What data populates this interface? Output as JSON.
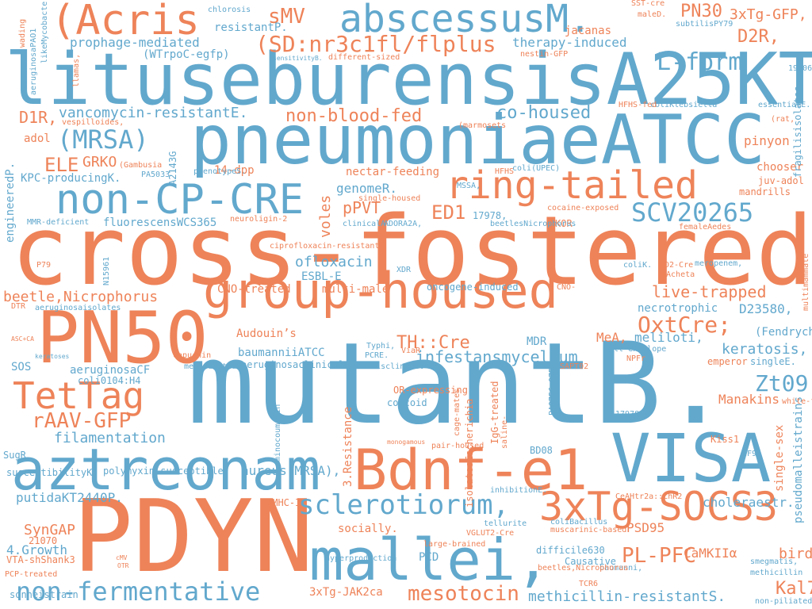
{
  "colors": {
    "orange": "#ee8359",
    "blue": "#62a8cd",
    "background": "#ffffff"
  },
  "words": [
    "cross-fostered",
    "mutantB.",
    "lituseburensisA25KT,",
    "pneumoniaeATCC",
    "PDYN",
    "PN50",
    "group-housed",
    "VISA",
    "aztreonam",
    "Bdnf-e1",
    "mallei,",
    "3xTg-SOCS3",
    "(Acris",
    "abscessusM.",
    "non-CP-CRE",
    "ring-tailed",
    "TetTag",
    "sclerotiorum,",
    "(SD:nr3c1fl/flplus",
    "non-fermentative",
    "SCV20265",
    "L-form",
    "sMV",
    "PN30",
    "3xTg-GFP,",
    "D2R,",
    "OxtCre;",
    "Zt09",
    "mesotocin",
    "PL-PFC",
    "(MRSA)",
    "rAAV-GFP",
    "live-trapped",
    "TH::Cre",
    "infestansmycelium",
    "beetle,Nicrophorus",
    "non-blood-fed",
    "co-housed",
    "ED1",
    "Kal7",
    "vancomycin-resistantE.",
    "ELE",
    "GRKO",
    "D1R,",
    "methicillin-resistantS.",
    "pinyon",
    "filamentation",
    "aureus(MRSA),",
    "putidaKT2440P.",
    "genomeR.",
    "pPVT",
    "voles",
    "ofloxacin",
    "SynGAP",
    "CaMKIIα",
    "birds’",
    "MeA,",
    "meliloti,",
    "keratosis,",
    "Manakins",
    "D23580,",
    "choleraestr.",
    "PSD95",
    "CNO-treated",
    "multi-male",
    "ESBL-E",
    "prophage-mediated",
    "(WTrpoC-egfp)",
    "resistantP.",
    "therapy-induced",
    "jacanas",
    "KPC-producingK.",
    "fluorescensWCS365",
    "nectar-feeding",
    "14-dpp",
    "adol",
    "necrotrophic",
    "(Fendrych",
    "3xTg-JAK2ca",
    "PCD",
    "socially.",
    "4.Growth",
    "MDR",
    "Audouin’s",
    "baumanniiATCC",
    "aeruginosaCF",
    "coli0104:H4",
    "SOS",
    "susceptibilityK,",
    "polymyxin-susceptible",
    "sonneistrain",
    "difficile630",
    "Causative",
    "BD08",
    "chooser",
    "juv-adol",
    "mandrills",
    "KOR",
    "17978,",
    "single-sex",
    "pseudomalleistrains",
    "3.Resistance",
    "isolatesEscherichia",
    "IgG-treated",
    "OR-expressing",
    "coccoid",
    "engineeredP.",
    "fragilisisolates",
    "A2143G",
    "MMR-deficient",
    "neuroligin-2",
    "ciprofloxacin-resistant",
    "oncogene-induced",
    "single-housed",
    "cocaine-exposed",
    "ADORA2A,",
    "beetlesNicrophorus",
    "clinicalA.",
    "coliKlebsiella",
    "essentialE.",
    "HFHS-fed",
    "chlorosis",
    "SST-cre",
    "maleD.",
    "subtilisPY79",
    "nestin-GFP",
    "different-sized",
    "aeruginosaPAO1",
    "likeMycobacterium",
    "llamas,",
    "wading",
    "sensitivityB.",
    "(marmosets",
    "vespilloides,",
    "(Gambusia",
    "PA5033",
    "phenotypeS.",
    "coli(UPEC)",
    "MSSA,",
    "HFHS",
    "femaleAedes",
    "meropenem,",
    "D2-Cre",
    "(Acheta",
    "(rat,",
    "19606",
    "multimammate",
    "XDR",
    "N15961",
    "P79",
    "aeruginosaisolates",
    "DTR",
    "ASC+CA",
    "keratoses",
    "capuchin",
    "methodsStrain",
    "Typhi,",
    "PCRE.",
    "ViaR",
    "aeruginosaclinical",
    "faecalisclinical",
    "cell-envelope",
    "NPFr",
    "emperor",
    "singleE.",
    "SAPT02",
    "white-faced",
    "CF9",
    "17978",
    "Kiss1",
    "saline-",
    "cage-mates",
    "aminocoumarin",
    "monogamous",
    "pair-housed",
    "PA0756-0757,",
    "inhibitionE.",
    "SugR",
    "CeAHtr2a::ChR2",
    "coliBacillus",
    "muscarinic-based",
    "large-brained",
    "tellurite",
    "hyperproduction",
    "VGLUT2-Cre",
    "smegmatis,",
    "methicillin",
    "TCR6",
    "non-piliated",
    "baumanni,",
    "beetles,Nicrophorus",
    "21070",
    "PCP-treated",
    "pMHC-I",
    "VTA-shShank3",
    "cMV",
    "OTR",
    "coliK.",
    "CNO-"
  ]
}
